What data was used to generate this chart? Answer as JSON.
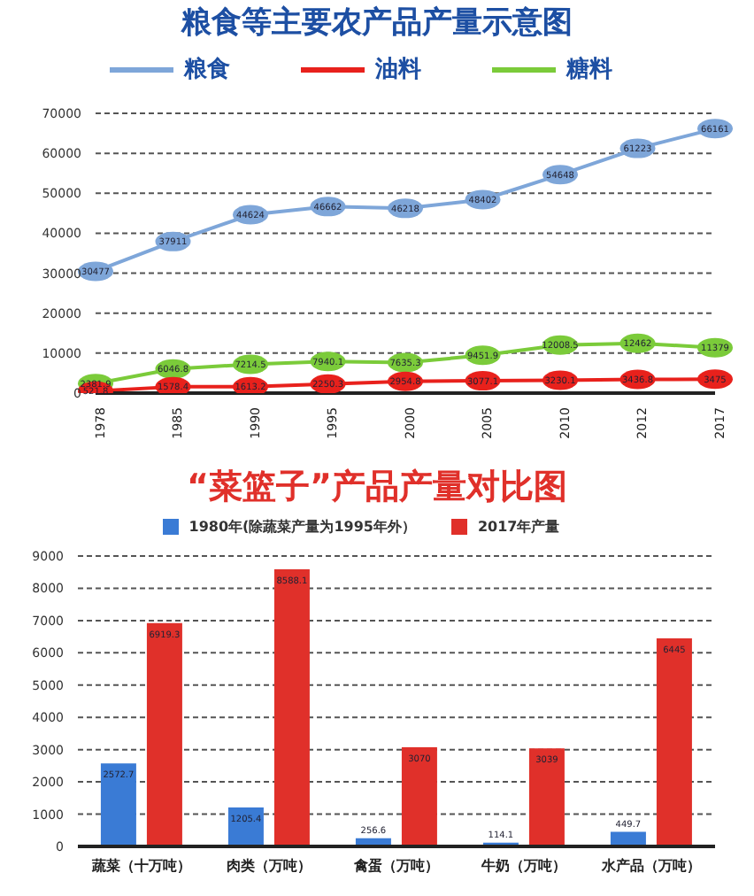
{
  "chart_data": [
    {
      "type": "line",
      "title": "粮食等主要农产品产量示意图",
      "categories": [
        "1978",
        "1985",
        "1990",
        "1995",
        "2000",
        "2005",
        "2010",
        "2012",
        "2017"
      ],
      "series": [
        {
          "name": "粮食",
          "color": "#7ea6d9",
          "values": [
            30477,
            37911,
            44624,
            46662,
            46218,
            48402,
            54648,
            61223,
            66161
          ]
        },
        {
          "name": "油料",
          "color": "#e8211c",
          "values": [
            521.8,
            1578.4,
            1613.2,
            2250.3,
            2954.8,
            3077.1,
            3230.1,
            3436.8,
            3475
          ]
        },
        {
          "name": "糖料",
          "color": "#7bcb3a",
          "values": [
            2381.9,
            6046.8,
            7214.5,
            7940.1,
            7635.3,
            9451.9,
            12008.5,
            12462,
            11379
          ]
        }
      ],
      "ylim": [
        0,
        70000
      ],
      "yticks": [
        0,
        10000,
        20000,
        30000,
        40000,
        50000,
        60000,
        70000
      ],
      "grid": "y",
      "legend": "top",
      "marker": "circle",
      "data_labels": true
    },
    {
      "type": "bar",
      "title": "“菜篮子”产品产量对比图",
      "categories": [
        "蔬菜（十万吨）",
        "肉类（万吨）",
        "禽蛋（万吨）",
        "牛奶（万吨）",
        "水产品（万吨）"
      ],
      "series": [
        {
          "name": "1980年(除蔬菜产量为1995年外）",
          "color": "#3a7bd5",
          "values": [
            2572.7,
            1205.4,
            256.6,
            114.1,
            449.7
          ]
        },
        {
          "name": "2017年产量",
          "color": "#e0302a",
          "values": [
            6919.3,
            8588.1,
            3070,
            3039,
            6445
          ]
        }
      ],
      "ylim": [
        0,
        9000
      ],
      "yticks": [
        0,
        1000,
        2000,
        3000,
        4000,
        5000,
        6000,
        7000,
        8000,
        9000
      ],
      "grid": "y",
      "legend": "top",
      "data_labels": true
    }
  ]
}
